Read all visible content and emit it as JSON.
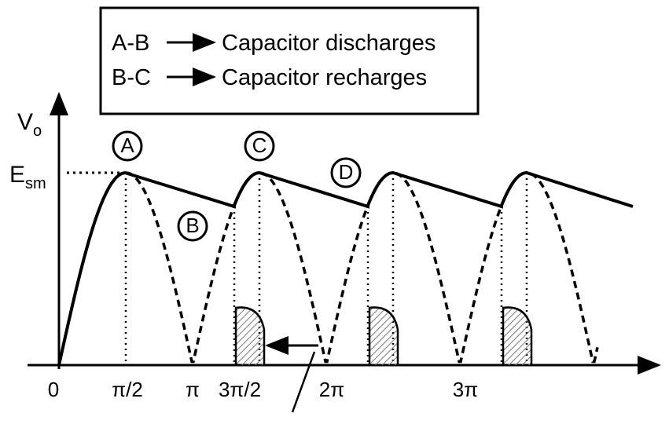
{
  "legend": [
    {
      "from": "A-B",
      "text": "Capacitor discharges"
    },
    {
      "from": "B-C",
      "text": "Capacitor recharges"
    }
  ],
  "y_axis": {
    "label": "V",
    "subscript": "o"
  },
  "level": {
    "label": "E",
    "subscript": "sm"
  },
  "points": [
    "A",
    "B",
    "C",
    "D"
  ],
  "x_labels": [
    "0",
    "π/2",
    "π",
    "3π/2",
    "2π",
    "3π"
  ]
}
